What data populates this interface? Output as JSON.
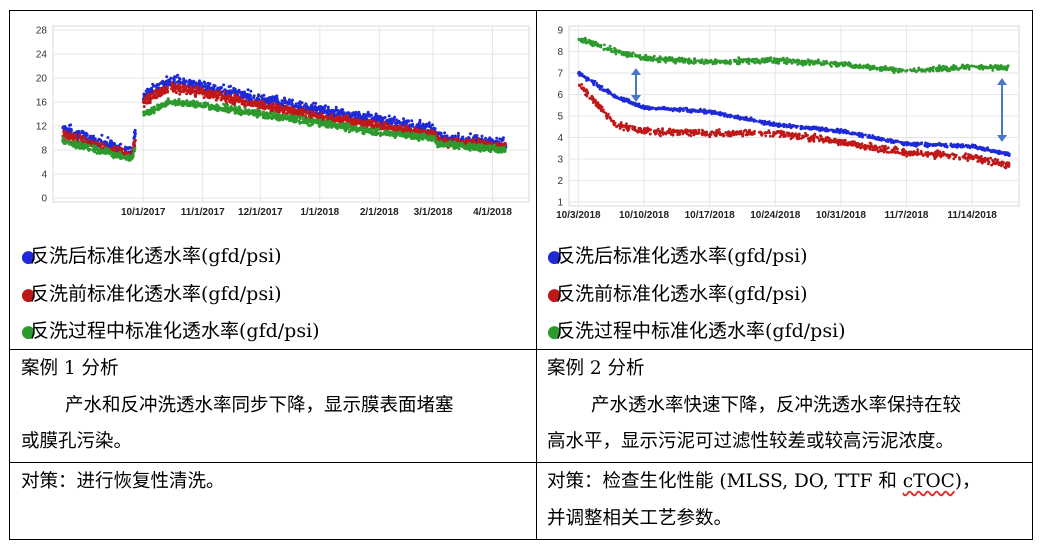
{
  "legend": {
    "after": "反洗后标准化透水率(gfd/psi)",
    "before": "反洗前标准化透水率(gfd/psi)",
    "during": "反洗过程中标准化透水率(gfd/psi)"
  },
  "colors": {
    "after": "#1f2ad6",
    "before": "#c01818",
    "during": "#2e9a2e"
  },
  "case1": {
    "title": "案例 1 分析",
    "desc_line1": "产水和反冲洗透水率同步下降，显示膜表面堵塞",
    "desc_line2": "或膜孔污染。",
    "action": "对策：进行恢复性清洗。"
  },
  "case2": {
    "title": "案例 2 分析",
    "desc_line1": "产水透水率快速下降，反冲洗透水率保持在较",
    "desc_line2": "高水平，显示污泥可过滤性较差或较高污泥浓度。",
    "action_pre": "对策：检查生化性能 (MLSS, DO, TTF 和 ",
    "action_ctoc": "cTOC",
    "action_post": ")，",
    "action_line2": "并调整相关工艺参数。"
  },
  "chart_data": [
    {
      "type": "scatter",
      "title": "",
      "xlabel": "",
      "ylabel": "",
      "x_ticks": [
        "10/1/2017",
        "11/1/2017",
        "12/1/2017",
        "1/1/2018",
        "2/1/2018",
        "3/1/2018",
        "4/1/2018"
      ],
      "y_ticks": [
        "0",
        "4",
        "8",
        "12",
        "16",
        "20",
        "24",
        "28"
      ],
      "ylim": [
        0,
        28
      ],
      "grid": true,
      "series": [
        {
          "name": "反洗后标准化透水率(gfd/psi)",
          "x": [
            "2017-08-20",
            "2017-09-25",
            "2017-10-01",
            "2017-10-15",
            "2017-11-01",
            "2017-12-01",
            "2018-01-01",
            "2018-02-01",
            "2018-03-01",
            "2018-03-04",
            "2018-04-08"
          ],
          "y": [
            11.5,
            7.5,
            17,
            19.5,
            18.5,
            16.5,
            14.5,
            13,
            11.5,
            10,
            9
          ]
        },
        {
          "name": "反洗前标准化透水率(gfd/psi)",
          "x": [
            "2017-08-20",
            "2017-09-25",
            "2017-10-01",
            "2017-10-15",
            "2017-11-01",
            "2017-12-01",
            "2018-01-01",
            "2018-02-01",
            "2018-03-01",
            "2018-03-04",
            "2018-04-08"
          ],
          "y": [
            10.5,
            7,
            16,
            18.5,
            17.5,
            15.5,
            13.5,
            12,
            10.5,
            9.5,
            8.5
          ]
        },
        {
          "name": "反洗过程中标准化透水率(gfd/psi)",
          "x": [
            "2017-08-20",
            "2017-09-25",
            "2017-10-01",
            "2017-10-15",
            "2017-11-01",
            "2017-12-01",
            "2018-01-01",
            "2018-02-01",
            "2018-03-01",
            "2018-03-04",
            "2018-04-08"
          ],
          "y": [
            9.5,
            6.5,
            14,
            16,
            15.5,
            14,
            12.5,
            11,
            10,
            9,
            8
          ]
        }
      ]
    },
    {
      "type": "scatter",
      "title": "",
      "xlabel": "",
      "ylabel": "",
      "x_ticks": [
        "10/3/2018",
        "10/10/2018",
        "10/17/2018",
        "10/24/2018",
        "10/31/2018",
        "11/7/2018",
        "11/14/2018"
      ],
      "y_ticks": [
        "1",
        "2",
        "3",
        "4",
        "5",
        "6",
        "7",
        "8",
        "9"
      ],
      "ylim": [
        1,
        9
      ],
      "grid": true,
      "series": [
        {
          "name": "反洗后标准化透水率(gfd/psi)",
          "x": [
            "2018-10-03",
            "2018-10-07",
            "2018-10-10",
            "2018-10-17",
            "2018-10-24",
            "2018-10-31",
            "2018-11-07",
            "2018-11-14",
            "2018-11-18"
          ],
          "y": [
            7.0,
            5.9,
            5.4,
            5.2,
            4.6,
            4.3,
            3.7,
            3.6,
            3.2
          ]
        },
        {
          "name": "反洗前标准化透水率(gfd/psi)",
          "x": [
            "2018-10-03",
            "2018-10-07",
            "2018-10-10",
            "2018-10-17",
            "2018-10-24",
            "2018-10-31",
            "2018-11-07",
            "2018-11-14",
            "2018-11-18"
          ],
          "y": [
            6.5,
            4.6,
            4.3,
            4.2,
            4.2,
            3.8,
            3.3,
            3.1,
            2.7
          ]
        },
        {
          "name": "反洗过程中标准化透水率(gfd/psi)",
          "x": [
            "2018-10-03",
            "2018-10-07",
            "2018-10-10",
            "2018-10-17",
            "2018-10-24",
            "2018-10-31",
            "2018-11-07",
            "2018-11-14",
            "2018-11-18"
          ],
          "y": [
            8.6,
            8.0,
            7.7,
            7.5,
            7.6,
            7.4,
            7.1,
            7.3,
            7.2
          ]
        }
      ]
    }
  ]
}
